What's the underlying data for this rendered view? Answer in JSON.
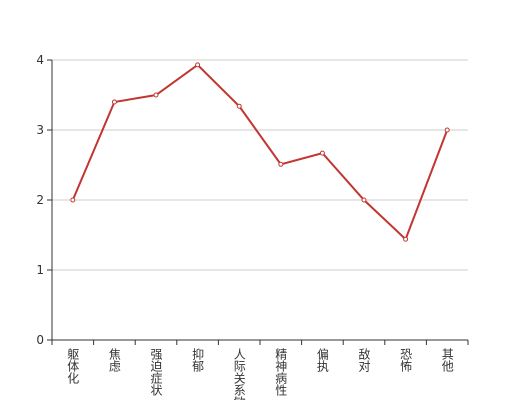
{
  "chart_data": {
    "type": "line",
    "categories": [
      "躯体化",
      "焦虑",
      "强迫症状",
      "抑郁",
      "人际关系敏感",
      "精神病性",
      "偏执",
      "敌对",
      "恐怖",
      "其他"
    ],
    "values": [
      2.0,
      3.4,
      3.5,
      3.93,
      3.34,
      2.51,
      2.67,
      2.0,
      1.44,
      3.0
    ],
    "color": "#c23531",
    "ylim": [
      0,
      4
    ],
    "yticks": [
      0,
      1,
      2,
      3,
      4
    ],
    "grid": true
  }
}
